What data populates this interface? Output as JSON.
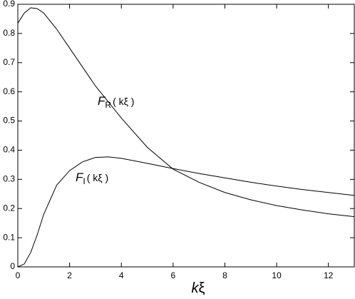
{
  "chart_data": {
    "type": "line",
    "x_label": {
      "main": "k",
      "rest": "ξ"
    },
    "x": [
      0,
      0.25,
      0.5,
      0.75,
      1,
      1.5,
      2,
      2.5,
      3,
      3.5,
      4,
      5,
      6,
      7,
      8,
      9,
      10,
      11,
      12,
      13
    ],
    "series": [
      {
        "color": "#000000",
        "values": [
          0.835,
          0.87,
          0.888,
          0.885,
          0.87,
          0.815,
          0.75,
          0.685,
          0.62,
          0.565,
          0.51,
          0.41,
          0.335,
          0.29,
          0.255,
          0.23,
          0.21,
          0.195,
          0.182,
          0.172
        ]
      },
      {
        "color": "#000000",
        "values": [
          0,
          0.01,
          0.05,
          0.11,
          0.18,
          0.28,
          0.33,
          0.36,
          0.375,
          0.377,
          0.372,
          0.355,
          0.337,
          0.32,
          0.305,
          0.29,
          0.277,
          0.265,
          0.255,
          0.245
        ]
      }
    ],
    "annotations": [
      {
        "main": "F",
        "sub": "R",
        "arg": "( kξ )"
      },
      {
        "main": "F",
        "sub": "I",
        "arg": "( kξ )"
      }
    ],
    "xlim": [
      0,
      13
    ],
    "xticks": [
      0,
      2,
      4,
      6,
      8,
      10,
      12
    ],
    "ylim": [
      0,
      0.9
    ],
    "yticks": [
      0,
      0.1,
      0.2,
      0.3,
      0.4,
      0.5,
      0.6,
      0.7,
      0.8,
      0.9
    ],
    "grid": false
  }
}
